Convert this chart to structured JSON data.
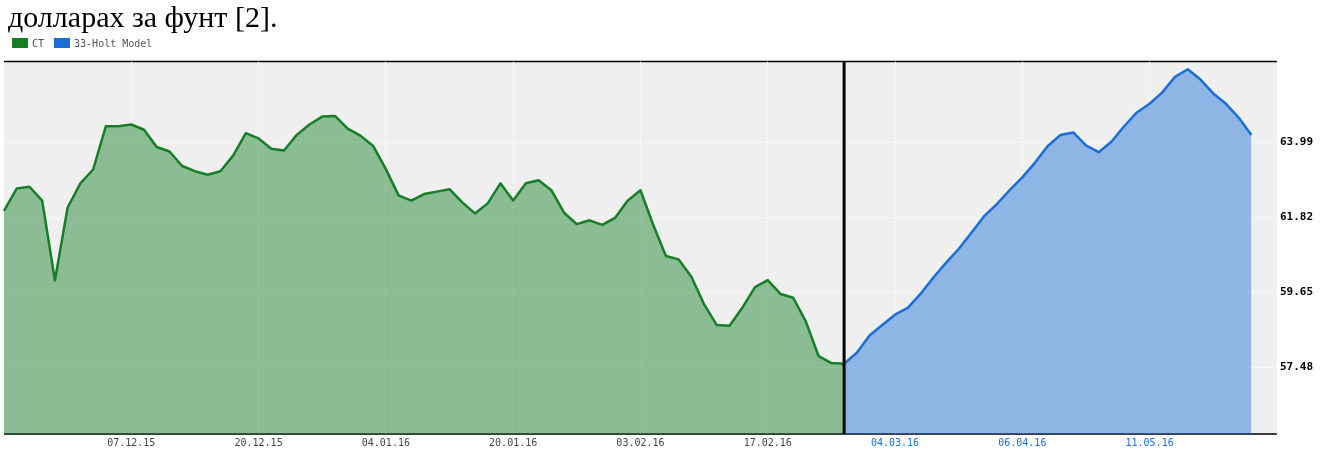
{
  "chart_data": {
    "type": "area",
    "title": "долларах за фунт [2].",
    "categories": [
      null,
      null,
      null,
      null,
      null,
      null,
      null,
      null,
      null,
      null,
      "07.12.15",
      null,
      null,
      null,
      null,
      null,
      null,
      null,
      null,
      null,
      "20.12.15",
      null,
      null,
      null,
      null,
      null,
      null,
      null,
      null,
      null,
      "04.01.16",
      null,
      null,
      null,
      null,
      null,
      null,
      null,
      null,
      null,
      "20.01.16",
      null,
      null,
      null,
      null,
      null,
      null,
      null,
      null,
      null,
      "03.02.16",
      null,
      null,
      null,
      null,
      null,
      null,
      null,
      null,
      null,
      "17.02.16",
      null,
      null,
      null,
      null,
      null,
      null,
      null,
      null,
      null,
      "04.03.16",
      null,
      null,
      null,
      null,
      null,
      null,
      null,
      null,
      null,
      "06.04.16",
      null,
      null,
      null,
      null,
      null,
      null,
      null,
      null,
      null,
      "11.05.16",
      null,
      null,
      null,
      null,
      null,
      null,
      null,
      null,
      null,
      null
    ],
    "series": [
      {
        "name": "CT",
        "color": "#157f25",
        "values": [
          62.0,
          62.65,
          62.7,
          62.3,
          59.99,
          62.1,
          62.8,
          63.2,
          64.45,
          64.45,
          64.5,
          64.35,
          63.85,
          63.72,
          63.3,
          63.15,
          63.05,
          63.15,
          63.6,
          64.25,
          64.1,
          63.8,
          63.75,
          64.2,
          64.5,
          64.73,
          64.75,
          64.38,
          64.18,
          63.88,
          63.21,
          62.45,
          62.3,
          62.49,
          62.56,
          62.63,
          62.25,
          61.93,
          62.22,
          62.8,
          62.3,
          62.8,
          62.89,
          62.6,
          61.95,
          61.62,
          61.73,
          61.6,
          61.8,
          62.3,
          62.6,
          61.6,
          60.7,
          60.6,
          60.1,
          59.3,
          58.7,
          58.68,
          59.2,
          59.8,
          60.0,
          59.6,
          59.49,
          58.8,
          57.8,
          57.6,
          57.58,
          null,
          null,
          null,
          null,
          null,
          null,
          null,
          null,
          null,
          null,
          null,
          null,
          null,
          null,
          null,
          null,
          null,
          null,
          null,
          null,
          null,
          null,
          null,
          null,
          null,
          null,
          null,
          null,
          null,
          null,
          null,
          null,
          null,
          null
        ]
      },
      {
        "name": "33-Holt Model",
        "color": "#1a6fd6",
        "values": [
          null,
          null,
          null,
          null,
          null,
          null,
          null,
          null,
          null,
          null,
          null,
          null,
          null,
          null,
          null,
          null,
          null,
          null,
          null,
          null,
          null,
          null,
          null,
          null,
          null,
          null,
          null,
          null,
          null,
          null,
          null,
          null,
          null,
          null,
          null,
          null,
          null,
          null,
          null,
          null,
          null,
          null,
          null,
          null,
          null,
          null,
          null,
          null,
          null,
          null,
          null,
          null,
          null,
          null,
          null,
          null,
          null,
          null,
          null,
          null,
          null,
          null,
          null,
          null,
          null,
          null,
          57.58,
          57.9,
          58.4,
          58.7,
          59.0,
          59.2,
          59.6,
          60.07,
          60.5,
          60.9,
          61.37,
          61.85,
          62.2,
          62.6,
          62.97,
          63.4,
          63.88,
          64.2,
          64.27,
          63.9,
          63.7,
          64.0,
          64.45,
          64.85,
          65.1,
          65.43,
          65.88,
          66.1,
          65.8,
          65.4,
          65.1,
          64.7,
          64.2,
          null,
          null
        ]
      }
    ],
    "ylim": [
      55.55,
      66.32
    ],
    "yticks": [
      57.48,
      59.65,
      61.82,
      63.99
    ],
    "ref_lines": [
      {
        "axis": "x",
        "color": "#000000"
      }
    ],
    "grid": true,
    "legend": "top left",
    "marker": "none"
  }
}
